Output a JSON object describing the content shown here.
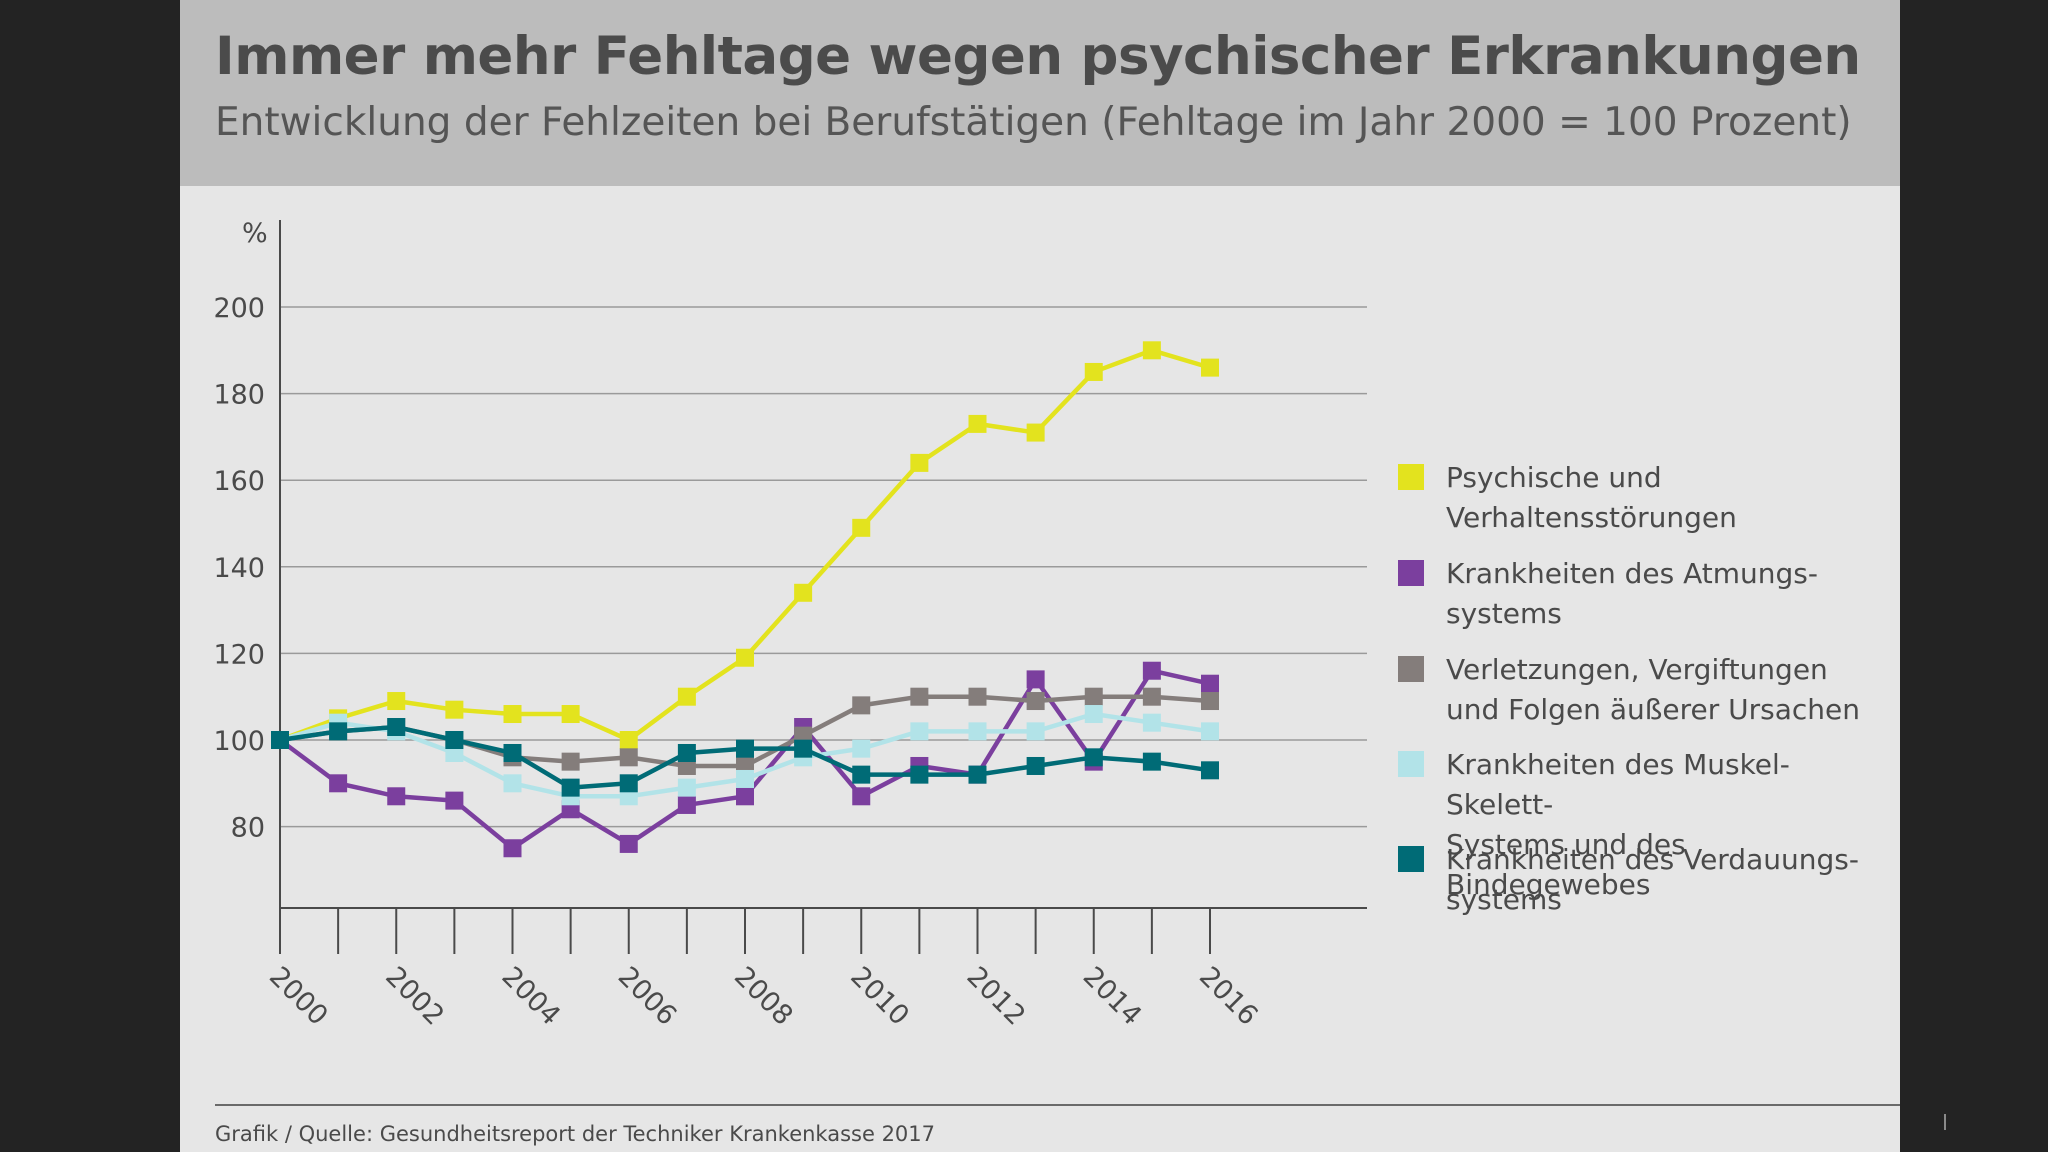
{
  "header": {
    "title": "Immer mehr Fehltage wegen psychischer Erkrankungen",
    "subtitle": "Entwicklung der Fehlzeiten bei Berufstätigen (Fehltage im Jahr 2000 = 100 Prozent)"
  },
  "chart_data": {
    "type": "line",
    "title": "Immer mehr Fehltage wegen psychischer Erkrankungen",
    "subtitle": "Entwicklung der Fehlzeiten bei Berufstätigen (Fehltage im Jahr 2000 = 100 Prozent)",
    "ylabel": "%",
    "xlabel": "",
    "ylim": [
      60,
      220
    ],
    "yticks": [
      80,
      100,
      120,
      140,
      160,
      180,
      200
    ],
    "ytick_labels": [
      "80",
      "100",
      "120",
      "140",
      "160",
      "180",
      "200"
    ],
    "x": [
      2000,
      2001,
      2002,
      2003,
      2004,
      2005,
      2006,
      2007,
      2008,
      2009,
      2010,
      2011,
      2012,
      2013,
      2014,
      2015,
      2016
    ],
    "xtick_labels": [
      "2000",
      "2002",
      "2004",
      "2006",
      "2008",
      "2010",
      "2012",
      "2014",
      "2016"
    ],
    "xtick_years": [
      2000,
      2002,
      2004,
      2006,
      2008,
      2010,
      2012,
      2014,
      2016
    ],
    "grid": "horizontal",
    "legend_position": "right",
    "series": [
      {
        "name": "Psychische und\nVerhaltensstörungen",
        "color": "#e3e31e",
        "values": [
          100,
          105,
          109,
          107,
          106,
          106,
          100,
          110,
          119,
          134,
          149,
          164,
          173,
          171,
          185,
          190,
          186
        ]
      },
      {
        "name": "Krankheiten des Atmungs-\nsystems",
        "color": "#7b3f9e",
        "values": [
          100,
          90,
          87,
          86,
          75,
          84,
          76,
          85,
          87,
          103,
          87,
          94,
          92,
          114,
          95,
          116,
          113
        ]
      },
      {
        "name": "Verletzungen, Vergiftungen\nund Folgen äußerer Ursachen",
        "color": "#847d7b",
        "values": [
          100,
          102,
          103,
          100,
          96,
          95,
          96,
          94,
          94,
          101,
          108,
          110,
          110,
          109,
          110,
          110,
          109
        ]
      },
      {
        "name": "Krankheiten des Muskel-Skelett-\nSystems und des Bindegewebes",
        "color": "#b2e3e8",
        "values": [
          100,
          104,
          102,
          97,
          90,
          87,
          87,
          89,
          91,
          96,
          98,
          102,
          102,
          102,
          106,
          104,
          102
        ]
      },
      {
        "name": "Krankheiten des Verdauungs-\nsystems",
        "color": "#006b76",
        "values": [
          100,
          102,
          103,
          100,
          97,
          89,
          90,
          97,
          98,
          98,
          92,
          92,
          92,
          94,
          96,
          95,
          93
        ]
      }
    ]
  },
  "footer": {
    "source": "Grafik / Quelle: Gesundheitsreport der Techniker Krankenkasse 2017"
  }
}
